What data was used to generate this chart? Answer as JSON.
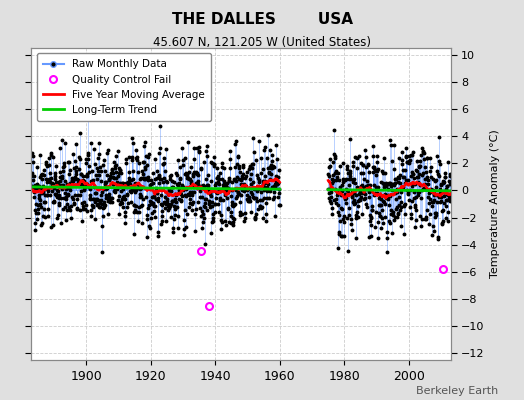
{
  "title1": "THE DALLES        USA",
  "title2": "45.607 N, 121.205 W (United States)",
  "ylabel": "Temperature Anomaly (°C)",
  "yticks": [
    -12,
    -10,
    -8,
    -6,
    -4,
    -2,
    0,
    2,
    4,
    6,
    8,
    10
  ],
  "ylim": [
    -12.5,
    10.5
  ],
  "xlim": [
    1883,
    2013
  ],
  "bg_color": "#e0e0e0",
  "plot_bg": "#ffffff",
  "raw_line_color": "#6699ff",
  "raw_marker_color": "#000000",
  "qc_fail_color": "#ff00ff",
  "moving_avg_color": "#ff0000",
  "trend_color": "#00cc00",
  "grid_color": "#cccccc",
  "attribution": "Berkeley Earth",
  "seed": 42
}
